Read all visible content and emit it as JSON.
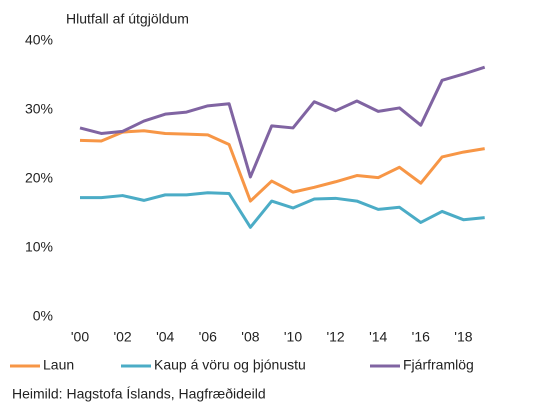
{
  "chart_data": {
    "type": "line",
    "title": "Hlutfall af útgjöldum",
    "source": "Heimild: Hagstofa Íslands, Hagfræðideild",
    "categories": [
      "'00",
      null,
      "'02",
      null,
      "'04",
      null,
      "'06",
      null,
      "'08",
      null,
      "'10",
      null,
      "'12",
      null,
      "'14",
      null,
      "'16",
      null,
      "'18",
      null
    ],
    "series": [
      {
        "name": "Laun",
        "color": "#f79646",
        "values": [
          25.6,
          25.5,
          26.8,
          27.0,
          26.6,
          26.5,
          26.4,
          25.0,
          16.8,
          19.7,
          18.1,
          18.8,
          19.6,
          20.5,
          20.2,
          21.7,
          19.4,
          23.2,
          23.9,
          24.4
        ]
      },
      {
        "name": "Kaup á vöru og þjónustu",
        "color": "#4bacc6",
        "values": [
          17.3,
          17.3,
          17.6,
          16.9,
          17.7,
          17.7,
          18.0,
          17.9,
          13.0,
          16.8,
          15.8,
          17.1,
          17.2,
          16.8,
          15.6,
          15.9,
          13.7,
          15.3,
          14.1,
          14.4
        ]
      },
      {
        "name": "Fjárframlög",
        "color": "#8064a2",
        "values": [
          27.4,
          26.6,
          26.9,
          28.4,
          29.4,
          29.7,
          30.6,
          30.9,
          20.3,
          27.7,
          27.4,
          31.2,
          29.9,
          31.3,
          29.8,
          30.3,
          27.8,
          34.3,
          35.2,
          36.2
        ]
      }
    ],
    "ylim": [
      0,
      40
    ],
    "yticks": [
      {
        "value": 0,
        "label": "0%"
      },
      {
        "value": 10,
        "label": "10%"
      },
      {
        "value": 20,
        "label": "20%"
      },
      {
        "value": 30,
        "label": "30%"
      },
      {
        "value": 40,
        "label": "40%"
      }
    ],
    "legend": "bottom"
  }
}
